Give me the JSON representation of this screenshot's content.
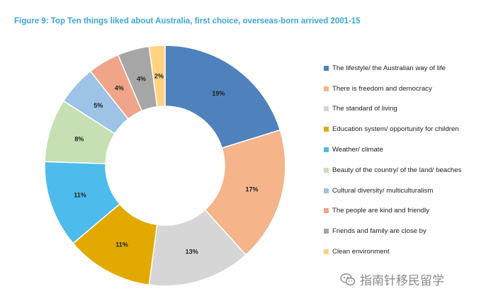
{
  "title": "Figure 9: Top Ten things liked about Australia, first choice, overseas-born arrived 2001-15",
  "watermark": "指南针移民留学",
  "chart_data": {
    "type": "pie",
    "donut": true,
    "title": "Figure 9: Top Ten things liked about Australia, first choice, overseas-born arrived 2001-15",
    "legend_position": "right",
    "slices": [
      {
        "label": "The lifestyle/ the Australian way of life",
        "value": 19,
        "display": "19%",
        "color": "#4f81bd"
      },
      {
        "label": "There is freedom and democracy",
        "value": 17,
        "display": "17%",
        "color": "#f5b48a"
      },
      {
        "label": "The standard of living",
        "value": 13,
        "display": "13%",
        "color": "#d6d6d6"
      },
      {
        "label": "Education system/ opportunity for children",
        "value": 11,
        "display": "11%",
        "color": "#e2a900"
      },
      {
        "label": "Weather/ climate",
        "value": 11,
        "display": "11%",
        "color": "#4dbbeb"
      },
      {
        "label": "Beauty of the country/ of the land/ beaches",
        "value": 8,
        "display": "8%",
        "color": "#c6e0b4"
      },
      {
        "label": "Cultural diversity/ multiculturalism",
        "value": 5,
        "display": "5%",
        "color": "#9dc3e6"
      },
      {
        "label": "The people are kind and friendly",
        "value": 4,
        "display": "4%",
        "color": "#f0a58a"
      },
      {
        "label": "Friends and family are close by",
        "value": 4,
        "display": "4%",
        "color": "#a6a6a6"
      },
      {
        "label": "Clean environment",
        "value": 2,
        "display": "2%",
        "color": "#ffd280"
      }
    ]
  }
}
